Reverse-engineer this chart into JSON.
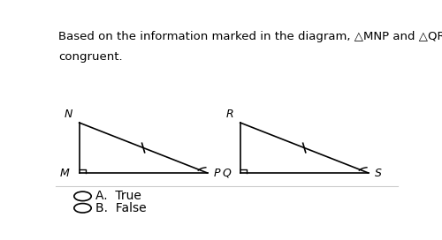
{
  "title_text1": "Based on the information marked in the diagram, △MNP and △QRS must be",
  "title_text2": "congruent.",
  "triangle1": {
    "M": [
      0,
      0
    ],
    "N": [
      0,
      1.6
    ],
    "P": [
      2.2,
      0
    ],
    "label_M": "M",
    "label_N": "N",
    "label_P": "P"
  },
  "triangle2": {
    "Q": [
      0,
      0
    ],
    "R": [
      0,
      1.6
    ],
    "S": [
      2.2,
      0
    ],
    "label_Q": "Q",
    "label_R": "R",
    "label_S": "S"
  },
  "answer_A": "A.  True",
  "answer_B": "B.  False",
  "bg_color": "#ffffff",
  "line_color": "#000000",
  "text_color": "#000000",
  "sep_color": "#cccccc",
  "font_size_title": 9.5,
  "font_size_labels": 9,
  "font_size_answers": 10,
  "ox1": 0.07,
  "oy1": 0.22,
  "ox2": 0.54,
  "oy2": 0.22,
  "scale": 0.17,
  "tick_size": 0.018,
  "sq_size": 0.018,
  "arc_size": 0.06,
  "arc_theta1": 95,
  "arc_theta2": 158
}
